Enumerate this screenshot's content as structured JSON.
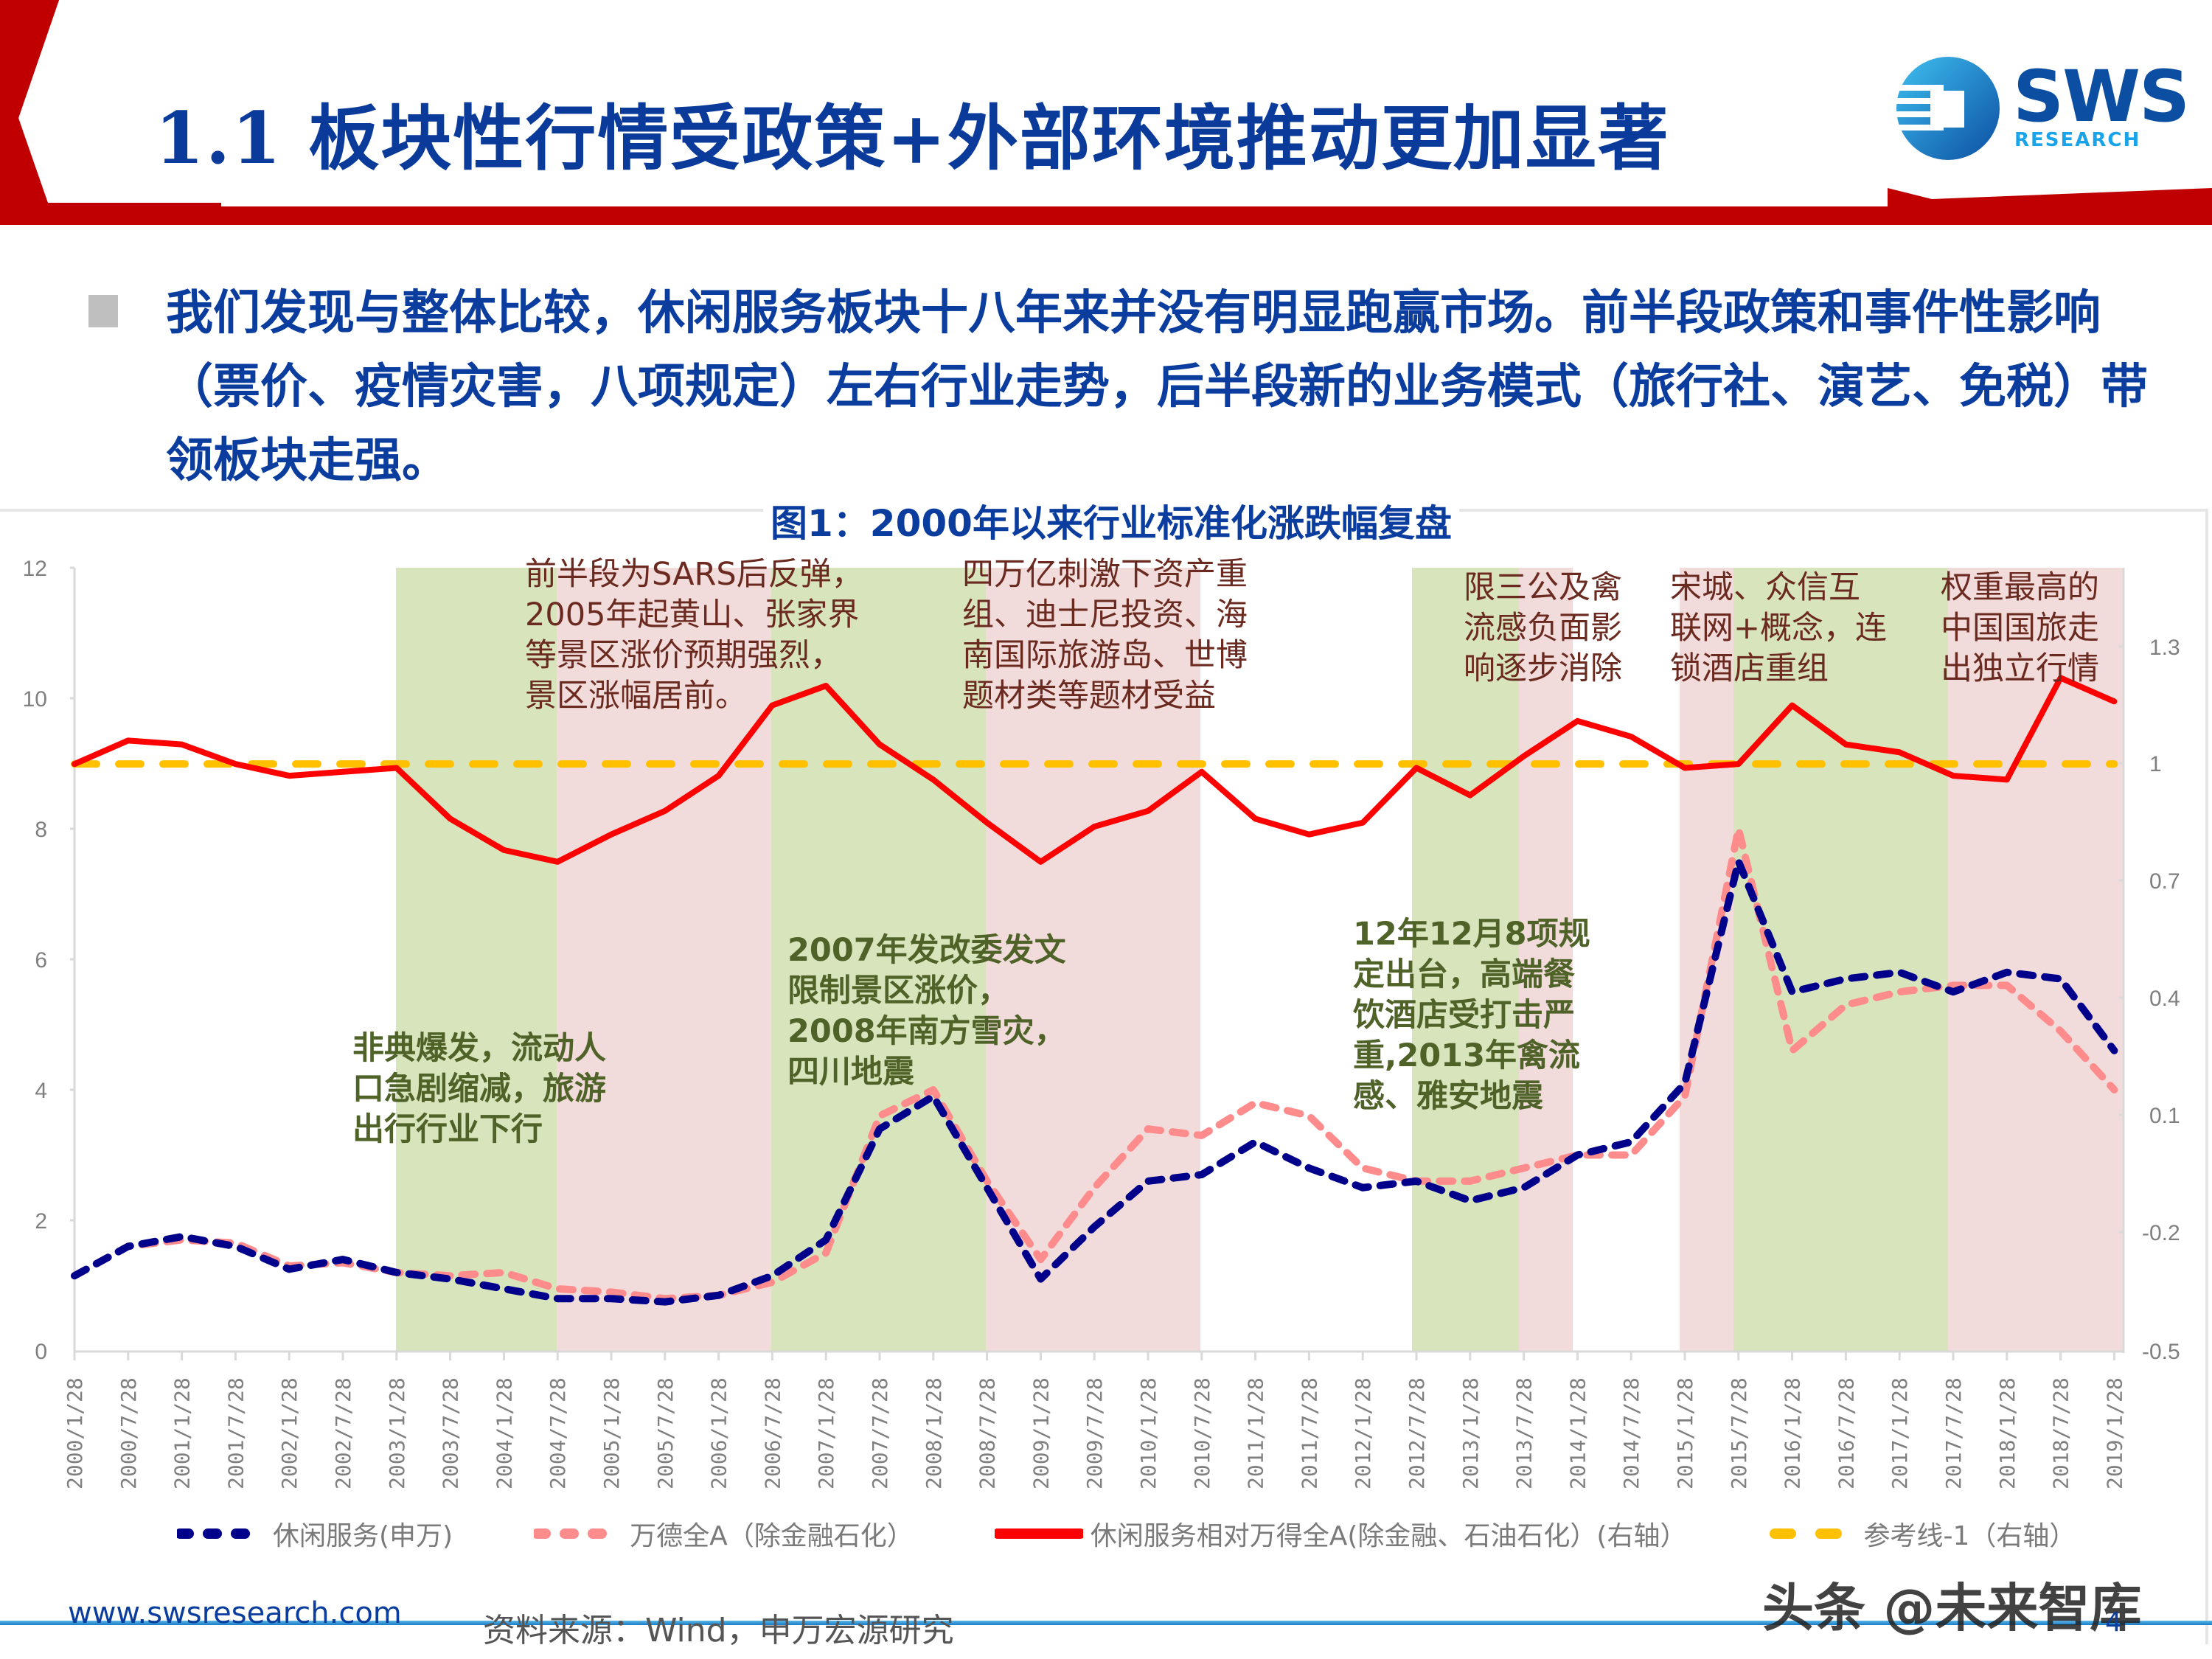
{
  "header": {
    "title": "1.1 板块性行情受政策+外部环境推动更加显著",
    "logo": {
      "name": "SWS",
      "sub": "RESEARCH"
    },
    "accent_color": "#c00000",
    "title_color": "#0a3a9a"
  },
  "summary": {
    "bullet_icon": "square-bullet",
    "text": "我们发现与整体比较，休闲服务板块十八年来并没有明显跑赢市场。前半段政策和事件性影响（票价、疫情灾害，八项规定）左右行业走势，后半段新的业务模式（旅行社、演艺、免税）带领板块走强。"
  },
  "chart": {
    "title": "图1：2000年以来行业标准化涨跌幅复盘",
    "annotations": [
      {
        "id": "sars-rebound",
        "style": "red",
        "lines": [
          "前半段为SARS后反弹，",
          "2005年起黄山、张家界",
          "等景区涨价预期强烈，",
          "景区涨幅居前。"
        ]
      },
      {
        "id": "stimulus",
        "style": "red",
        "lines": [
          "四万亿刺激下资产重",
          "组、迪士尼投资、海",
          "南国际旅游岛、世博",
          "题材类等题材受益"
        ]
      },
      {
        "id": "avian-flu-recovery",
        "style": "red",
        "lines": [
          "限三公及禽",
          "流感负面影",
          "响逐步消除"
        ]
      },
      {
        "id": "songcheng",
        "style": "red",
        "lines": [
          "宋城、众信互",
          "联网+概念，连",
          "锁酒店重组"
        ]
      },
      {
        "id": "cits",
        "style": "red",
        "lines": [
          "权重最高的",
          "中国国旅走",
          "出独立行情"
        ]
      },
      {
        "id": "sars-outbreak",
        "style": "green",
        "lines": [
          "非典爆发，流动人",
          "口急剧缩减，旅游",
          "出行行业下行"
        ]
      },
      {
        "id": "ndrc-2007",
        "style": "green",
        "lines": [
          "2007年发改委发文",
          "限制景区涨价，",
          "2008年南方雪灾，",
          "四川地震"
        ]
      },
      {
        "id": "eight-rules",
        "style": "green",
        "lines": [
          "12年12月8项规",
          "定出台，高端餐",
          "饮酒店受打击严",
          "重,2013年禽流",
          "感、雅安地震"
        ]
      }
    ],
    "legend": [
      {
        "label": "休闲服务(申万)",
        "color": "#00008b",
        "style": "dotted"
      },
      {
        "label": "万德全A（除金融石化）",
        "color": "#ff8c8c",
        "style": "dotted"
      },
      {
        "label": "休闲服务相对万得全A(除金融、石油石化）(右轴）",
        "color": "#ff0000",
        "style": "solid"
      },
      {
        "label": "参考线-1（右轴）",
        "color": "#ffc000",
        "style": "dashed"
      }
    ]
  },
  "chart_data": {
    "type": "line",
    "title": "图1：2000年以来行业标准化涨跌幅复盘",
    "xlabel": "",
    "ylabel": "",
    "ylim": [
      0,
      12
    ],
    "y2lim": [
      -0.5,
      1.3
    ],
    "yticks": [
      "0",
      "2",
      "4",
      "6",
      "8",
      "10",
      "12"
    ],
    "y2ticks": [
      "-0.5",
      "-0.2",
      "0.1",
      "0.4",
      "0.7",
      "1",
      "1.3"
    ],
    "categories": [
      "2000/1/28",
      "2000/7/28",
      "2001/1/28",
      "2001/7/28",
      "2002/1/28",
      "2002/7/28",
      "2003/1/28",
      "2003/7/28",
      "2004/1/28",
      "2004/7/28",
      "2005/1/28",
      "2005/7/28",
      "2006/1/28",
      "2006/7/28",
      "2007/1/28",
      "2007/7/28",
      "2008/1/28",
      "2008/7/28",
      "2009/1/28",
      "2009/7/28",
      "2010/1/28",
      "2010/7/28",
      "2011/1/28",
      "2011/7/28",
      "2012/1/28",
      "2012/7/28",
      "2013/1/28",
      "2013/7/28",
      "2014/1/28",
      "2014/7/28",
      "2015/1/28",
      "2015/7/28",
      "2016/1/28",
      "2016/7/28",
      "2017/1/28",
      "2017/7/28",
      "2018/1/28",
      "2018/7/28",
      "2019/1/28"
    ],
    "series": [
      {
        "name": "休闲服务(申万)",
        "axis": "left",
        "values": [
          1.15,
          1.6,
          1.75,
          1.6,
          1.25,
          1.4,
          1.2,
          1.1,
          0.95,
          0.8,
          0.8,
          0.75,
          0.85,
          1.15,
          1.7,
          3.4,
          3.9,
          2.5,
          1.1,
          1.9,
          2.6,
          2.7,
          3.2,
          2.8,
          2.5,
          2.6,
          2.3,
          2.5,
          3.0,
          3.2,
          4.1,
          7.5,
          5.5,
          5.7,
          5.8,
          5.5,
          5.8,
          5.7,
          4.6
        ]
      },
      {
        "name": "万德全A（除金融石化）",
        "axis": "left",
        "values": [
          1.15,
          1.6,
          1.7,
          1.65,
          1.3,
          1.35,
          1.2,
          1.15,
          1.2,
          0.95,
          0.9,
          0.8,
          0.85,
          1.05,
          1.5,
          3.6,
          4.0,
          2.6,
          1.4,
          2.5,
          3.4,
          3.3,
          3.8,
          3.6,
          2.8,
          2.6,
          2.6,
          2.8,
          3.0,
          3.0,
          3.9,
          8.0,
          4.6,
          5.3,
          5.5,
          5.6,
          5.6,
          4.9,
          4.0
        ]
      },
      {
        "name": "休闲服务相对万得全A(除金融、石油石化）(右轴)",
        "axis": "right",
        "values": [
          1.0,
          1.06,
          1.05,
          1.0,
          0.97,
          0.98,
          0.99,
          0.86,
          0.78,
          0.75,
          0.82,
          0.88,
          0.97,
          1.15,
          1.2,
          1.05,
          0.96,
          0.85,
          0.75,
          0.84,
          0.88,
          0.98,
          0.86,
          0.82,
          0.85,
          0.99,
          0.92,
          1.02,
          1.11,
          1.07,
          0.99,
          1.0,
          1.15,
          1.05,
          1.03,
          0.97,
          0.96,
          1.22,
          1.16
        ]
      },
      {
        "name": "参考线-1（右轴）",
        "axis": "right",
        "values": [
          1,
          1,
          1,
          1,
          1,
          1,
          1,
          1,
          1,
          1,
          1,
          1,
          1,
          1,
          1,
          1,
          1,
          1,
          1,
          1,
          1,
          1,
          1,
          1,
          1,
          1,
          1,
          1,
          1,
          1,
          1,
          1,
          1,
          1,
          1,
          1,
          1,
          1,
          1
        ]
      }
    ],
    "shaded_periods": [
      {
        "from": "2003/1/28",
        "to": "2004/7/28",
        "color": "green"
      },
      {
        "from": "2004/7/28",
        "to": "2006/7/28",
        "color": "pink"
      },
      {
        "from": "2006/7/28",
        "to": "2008/7/28",
        "color": "green"
      },
      {
        "from": "2008/7/28",
        "to": "2010/7/28",
        "color": "pink"
      },
      {
        "from": "2012/7/28",
        "to": "2013/7/28",
        "color": "green"
      },
      {
        "from": "2013/7/28",
        "to": "2014/1/28",
        "color": "pink"
      },
      {
        "from": "2015/1/28",
        "to": "2015/7/28",
        "color": "pink"
      },
      {
        "from": "2015/7/28",
        "to": "2017/7/28",
        "color": "green"
      },
      {
        "from": "2017/7/28",
        "to": "2019/4/28",
        "color": "pink"
      }
    ],
    "grid": false,
    "legend_position": "bottom"
  },
  "footer": {
    "url": "www.swsresearch.com",
    "source": "资料来源：Wind，申万宏源研究",
    "page": "4",
    "watermark": "头条 @未来智库"
  }
}
